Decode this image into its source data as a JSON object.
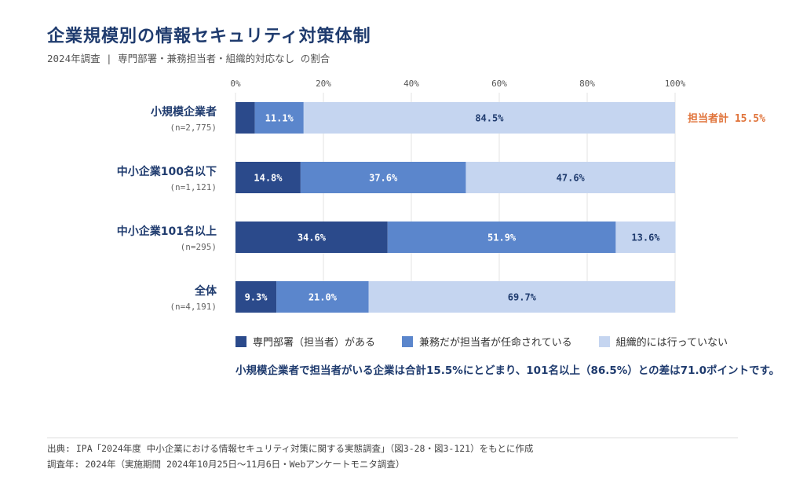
{
  "header": {
    "title": "企業規模別の情報セキュリティ対策体制",
    "subtitle": "2024年調査 | 専門部署・兼務担当者・組織的対応なし の割合"
  },
  "chart_data": {
    "type": "bar",
    "orientation": "horizontal",
    "stacked": true,
    "xlim": [
      0,
      100
    ],
    "x_ticks": [
      "0%",
      "20%",
      "40%",
      "60%",
      "80%",
      "100%"
    ],
    "categories": [
      {
        "label": "小規模企業者",
        "n": "(n=2,775)"
      },
      {
        "label": "中小企業100名以下",
        "n": "(n=1,121)"
      },
      {
        "label": "中小企業101名以上",
        "n": "(n=295)"
      },
      {
        "label": "全体",
        "n": "(n=4,191)"
      }
    ],
    "series": [
      {
        "name": "専門部署（担当者）がある",
        "color": "#2b4a8b",
        "values": [
          4.4,
          14.8,
          34.6,
          9.3
        ],
        "labels": [
          "",
          "14.8%",
          "34.6%",
          "9.3%"
        ],
        "label_color": "#ffffff"
      },
      {
        "name": "兼務だが担当者が任命されている",
        "color": "#5b86cc",
        "values": [
          11.1,
          37.6,
          51.9,
          21.0
        ],
        "labels": [
          "11.1%",
          "37.6%",
          "51.9%",
          "21.0%"
        ],
        "label_color": "#ffffff"
      },
      {
        "name": "組織的には行っていない",
        "color": "#c5d5f0",
        "values": [
          84.5,
          47.6,
          13.6,
          69.7
        ],
        "labels": [
          "84.5%",
          "47.6%",
          "13.6%",
          "69.7%"
        ],
        "label_color": "#1f3b6e"
      }
    ],
    "annotation": {
      "text": "担当者計 15.5%",
      "category_index": 0,
      "color": "#e0733a"
    },
    "grid": true,
    "legend_position": "bottom"
  },
  "note": "小規模企業者で担当者がいる企業は合計15.5%にとどまり、101名以上（86.5%）との差は71.0ポイントです。",
  "footer": {
    "source": "出典: IPA「2024年度 中小企業における情報セキュリティ対策に関する実態調査」（図3-28・図3-121）をもとに作成",
    "survey": "調査年: 2024年（実施期間 2024年10月25日〜11月6日・Webアンケートモニタ調査）"
  }
}
